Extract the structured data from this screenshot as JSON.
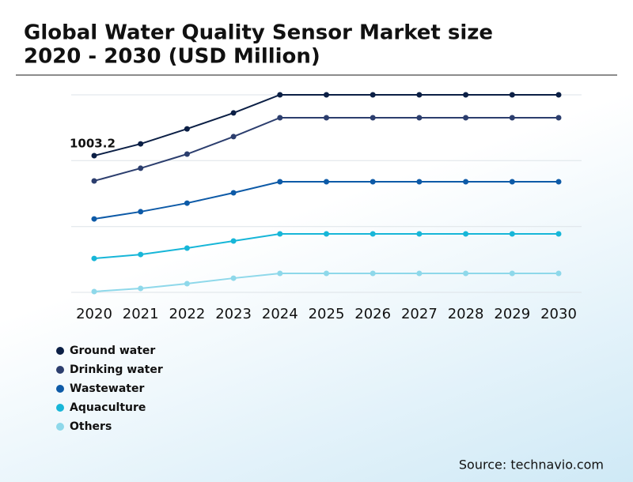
{
  "chart_data": {
    "type": "line",
    "title": "Global Water Quality Sensor Market size",
    "subtitle": "2020 - 2030 (USD Million)",
    "source": "Source: technavio.com",
    "categories": [
      "2020",
      "2021",
      "2022",
      "2023",
      "2024",
      "2025",
      "2026",
      "2027",
      "2028",
      "2029",
      "2030"
    ],
    "series": [
      {
        "name": "Ground water",
        "color": "#0b1f45",
        "values": [
          1003.2,
          1090,
          1200,
          1317,
          1450,
          1450,
          1450,
          1450,
          1450,
          1450,
          1450
        ]
      },
      {
        "name": "Drinking water",
        "color": "#2c3e6e",
        "values": [
          818,
          911,
          1015,
          1143,
          1282,
          1282,
          1282,
          1282,
          1282,
          1282,
          1282
        ]
      },
      {
        "name": "Wastewater",
        "color": "#0d5aa7",
        "values": [
          539,
          592,
          655,
          731,
          812,
          812,
          812,
          812,
          812,
          812,
          812
        ]
      },
      {
        "name": "Aquaculture",
        "color": "#17b6d8",
        "values": [
          249,
          278,
          325,
          377,
          429,
          429,
          429,
          429,
          429,
          429,
          429
        ]
      },
      {
        "name": "Others",
        "color": "#8ed8ea",
        "values": [
          6,
          29,
          64,
          104,
          139,
          139,
          139,
          139,
          139,
          139,
          139
        ]
      }
    ],
    "ylim": [
      0,
      1450
    ],
    "yticks": [
      0,
      483,
      967,
      1450
    ],
    "grid": true
  }
}
